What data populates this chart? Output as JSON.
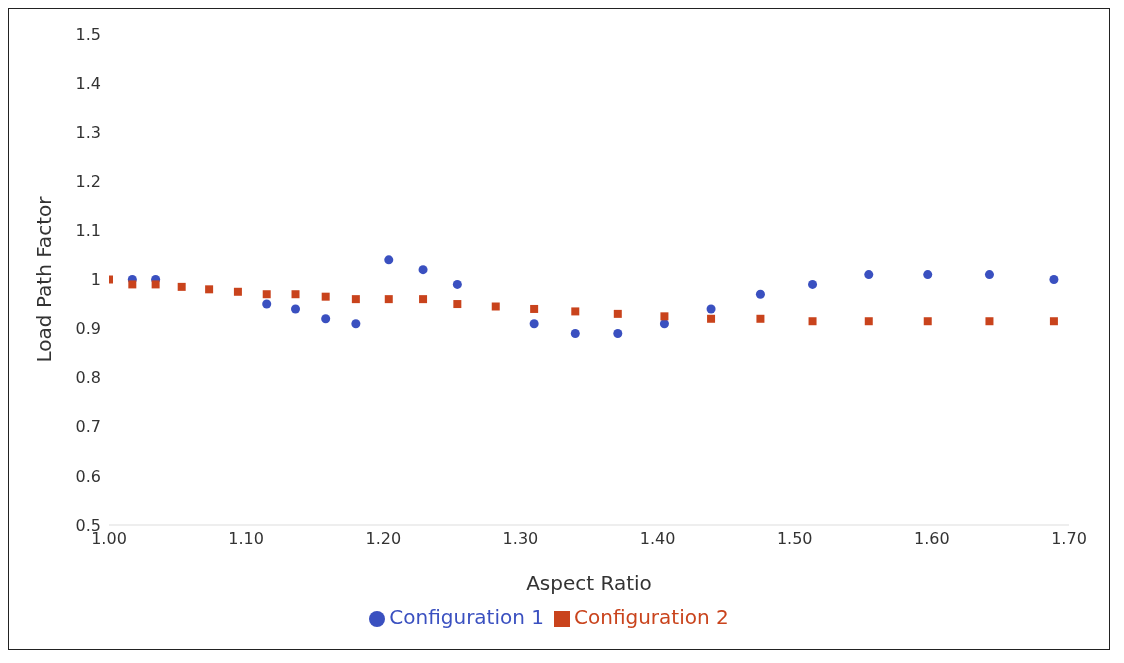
{
  "chart_data": {
    "type": "scatter",
    "xlabel": "Aspect Ratio",
    "ylabel": "Load Path Factor",
    "xlim": [
      1.0,
      1.7
    ],
    "xticks": [
      {
        "value": 1.0,
        "label": "1.00"
      },
      {
        "value": 1.1,
        "label": "1.10"
      },
      {
        "value": 1.2,
        "label": "1.20"
      },
      {
        "value": 1.3,
        "label": "1.30"
      },
      {
        "value": 1.4,
        "label": "1.40"
      },
      {
        "value": 1.5,
        "label": "1.50"
      },
      {
        "value": 1.6,
        "label": "1.60"
      },
      {
        "value": 1.7,
        "label": "1.70"
      }
    ],
    "ylim": [
      0.5,
      1.5
    ],
    "yticks": [
      0.5,
      0.6,
      0.7,
      0.8,
      0.9,
      1,
      1.1,
      1.2,
      1.3,
      1.4,
      1.5
    ],
    "grid": false,
    "legend": "bottom",
    "series": [
      {
        "name": "Configuration 1",
        "color": "#3a50c0",
        "marker": "circle",
        "x": [
          1.017,
          1.034,
          1.115,
          1.136,
          1.158,
          1.18,
          1.204,
          1.229,
          1.254,
          1.31,
          1.34,
          1.371,
          1.405,
          1.439,
          1.475,
          1.513,
          1.554,
          1.597,
          1.642,
          1.689
        ],
        "values": [
          1.0,
          1.0,
          0.95,
          0.94,
          0.92,
          0.91,
          1.04,
          1.02,
          0.99,
          0.91,
          0.89,
          0.89,
          0.91,
          0.94,
          0.97,
          0.99,
          1.01,
          1.01,
          1.01,
          1.0
        ]
      },
      {
        "name": "Configuration 2",
        "color": "#c9431c",
        "marker": "square",
        "x": [
          1.0,
          1.017,
          1.034,
          1.053,
          1.073,
          1.094,
          1.115,
          1.136,
          1.158,
          1.18,
          1.204,
          1.229,
          1.254,
          1.282,
          1.31,
          1.34,
          1.371,
          1.405,
          1.439,
          1.475,
          1.513,
          1.554,
          1.597,
          1.642,
          1.689
        ],
        "values": [
          1.0,
          0.99,
          0.99,
          0.985,
          0.98,
          0.975,
          0.97,
          0.97,
          0.965,
          0.96,
          0.96,
          0.96,
          0.95,
          0.945,
          0.94,
          0.935,
          0.93,
          0.925,
          0.92,
          0.92,
          0.915,
          0.915,
          0.915,
          0.915,
          0.915
        ]
      }
    ]
  }
}
